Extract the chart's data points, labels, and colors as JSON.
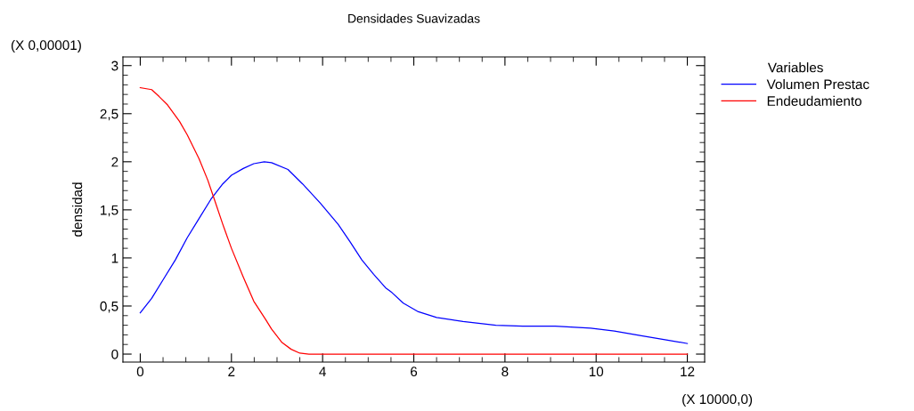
{
  "chart_data": {
    "type": "line",
    "title": "Densidades Suavizadas",
    "ylabel": "densidad",
    "legend_title": "Variables",
    "annotations": [
      "(X 0,00001)",
      "(X 10000,0)"
    ],
    "series": [
      {
        "name": "Volumen Prestac",
        "color": "#0000ff",
        "x": [
          0,
          0.25,
          0.51,
          0.77,
          1.03,
          1.29,
          1.55,
          1.81,
          2.0,
          2.26,
          2.49,
          2.72,
          2.88,
          3.24,
          3.56,
          3.95,
          4.34,
          4.6,
          4.86,
          5.12,
          5.38,
          5.52,
          5.77,
          6.1,
          6.5,
          7.08,
          7.8,
          8.39,
          9.1,
          9.88,
          10.4,
          10.99,
          11.51,
          12.0
        ],
        "values": [
          0.43,
          0.58,
          0.78,
          0.98,
          1.21,
          1.41,
          1.61,
          1.77,
          1.86,
          1.93,
          1.98,
          2.0,
          1.99,
          1.92,
          1.77,
          1.57,
          1.35,
          1.17,
          0.98,
          0.83,
          0.69,
          0.64,
          0.53,
          0.44,
          0.38,
          0.34,
          0.3,
          0.29,
          0.29,
          0.27,
          0.24,
          0.19,
          0.15,
          0.11
        ]
      },
      {
        "name": "Endeudamiento",
        "color": "#ff0000",
        "x": [
          0,
          0.25,
          0.41,
          0.6,
          0.86,
          1.03,
          1.29,
          1.48,
          1.61,
          1.81,
          2.0,
          2.26,
          2.49,
          2.75,
          2.88,
          3.11,
          3.31,
          3.5,
          3.7,
          12.0
        ],
        "values": [
          2.77,
          2.75,
          2.68,
          2.59,
          2.42,
          2.28,
          2.03,
          1.81,
          1.63,
          1.35,
          1.1,
          0.8,
          0.55,
          0.36,
          0.26,
          0.12,
          0.05,
          0.01,
          0,
          0
        ]
      }
    ],
    "xlim": [
      -0.38,
      12.38
    ],
    "xticks": [
      0,
      2,
      4,
      6,
      8,
      10,
      12
    ],
    "ylim": [
      -0.083,
      3.09
    ],
    "yticks": [
      0,
      {
        "value": 0.5,
        "label": "0,5"
      },
      1,
      {
        "value": 1.5,
        "label": "1,5"
      },
      2,
      {
        "value": 2.5,
        "label": "2,5"
      },
      3
    ],
    "grid": false,
    "legend": "top right",
    "marker": "none",
    "line_style": "solid"
  }
}
